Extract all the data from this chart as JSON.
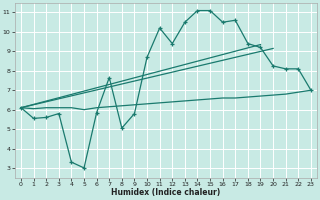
{
  "xlabel": "Humidex (Indice chaleur)",
  "bg_color": "#c8eae4",
  "grid_color": "#ffffff",
  "line_color": "#1a7a6e",
  "xlim": [
    -0.5,
    23.5
  ],
  "ylim": [
    2.5,
    11.5
  ],
  "xticks": [
    0,
    1,
    2,
    3,
    4,
    5,
    6,
    7,
    8,
    9,
    10,
    11,
    12,
    13,
    14,
    15,
    16,
    17,
    18,
    19,
    20,
    21,
    22,
    23
  ],
  "yticks": [
    3,
    4,
    5,
    6,
    7,
    8,
    9,
    10,
    11
  ],
  "curve1_x": [
    0,
    1,
    2,
    3,
    4,
    5,
    6,
    7,
    8,
    9,
    10,
    11,
    12,
    13,
    14,
    15,
    16,
    17,
    18,
    19,
    20,
    21,
    22,
    23
  ],
  "curve1_y": [
    6.1,
    5.55,
    5.6,
    5.8,
    3.3,
    3.0,
    5.85,
    7.65,
    5.05,
    5.8,
    8.7,
    10.2,
    9.4,
    10.5,
    11.1,
    11.1,
    10.5,
    10.6,
    9.4,
    9.2,
    8.25,
    8.1,
    8.1,
    7.0
  ],
  "curve2_x": [
    0,
    19
  ],
  "curve2_y": [
    6.1,
    9.35
  ],
  "curve3_x": [
    0,
    20
  ],
  "curve3_y": [
    6.1,
    9.15
  ],
  "curve4_x": [
    0,
    1,
    2,
    3,
    4,
    5,
    6,
    7,
    8,
    9,
    10,
    11,
    12,
    13,
    14,
    15,
    16,
    17,
    18,
    19,
    20,
    21,
    22,
    23
  ],
  "curve4_y": [
    6.1,
    6.05,
    6.1,
    6.1,
    6.1,
    6.0,
    6.1,
    6.15,
    6.2,
    6.25,
    6.3,
    6.35,
    6.4,
    6.45,
    6.5,
    6.55,
    6.6,
    6.6,
    6.65,
    6.7,
    6.75,
    6.8,
    6.9,
    7.0
  ]
}
